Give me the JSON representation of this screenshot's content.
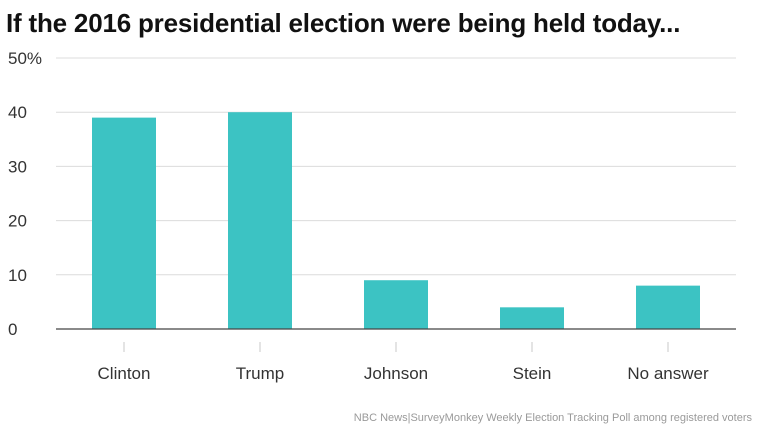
{
  "chart_data": {
    "type": "bar",
    "title": "If the 2016 presidential election were being held today...",
    "categories": [
      "Clinton",
      "Trump",
      "Johnson",
      "Stein",
      "No answer"
    ],
    "values": [
      39,
      40,
      9,
      4,
      8
    ],
    "y_ticks": [
      "0",
      "10",
      "20",
      "30",
      "40",
      "50%"
    ],
    "ylim": [
      0,
      50
    ],
    "grid": true,
    "bar_color": "#3cc3c3",
    "source": "NBC News|SurveyMonkey Weekly Election Tracking Poll among registered voters"
  }
}
